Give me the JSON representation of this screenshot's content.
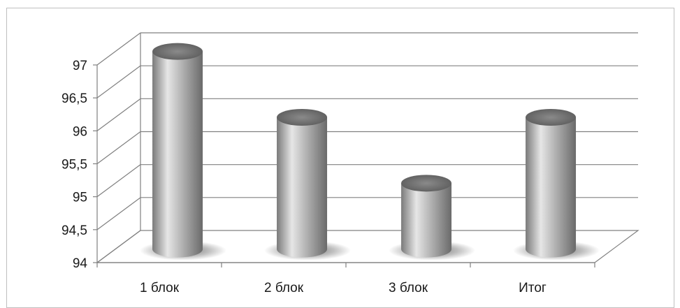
{
  "chart_data": {
    "type": "bar",
    "bar_shape": "cylinder",
    "perspective": "3d",
    "categories": [
      "1 блок",
      "2 блок",
      "3 блок",
      "Итог"
    ],
    "values": [
      97,
      96,
      95,
      96
    ],
    "ylim": [
      94,
      97
    ],
    "yticks": [
      "94",
      "94,5",
      "95",
      "95,5",
      "96",
      "96,5",
      "97"
    ],
    "ytick_values": [
      94,
      94.5,
      95,
      95.5,
      96,
      96.5,
      97
    ],
    "title": "",
    "xlabel": "",
    "ylabel": "",
    "grid": true,
    "legend": "none",
    "colors": {
      "bar_light": "#f2f2f2",
      "bar_mid": "#b8b8b8",
      "bar_dark": "#6e6e6e",
      "bar_top": "#5e5e5e",
      "grid": "#808080",
      "frame": "#bfbfbf"
    }
  }
}
